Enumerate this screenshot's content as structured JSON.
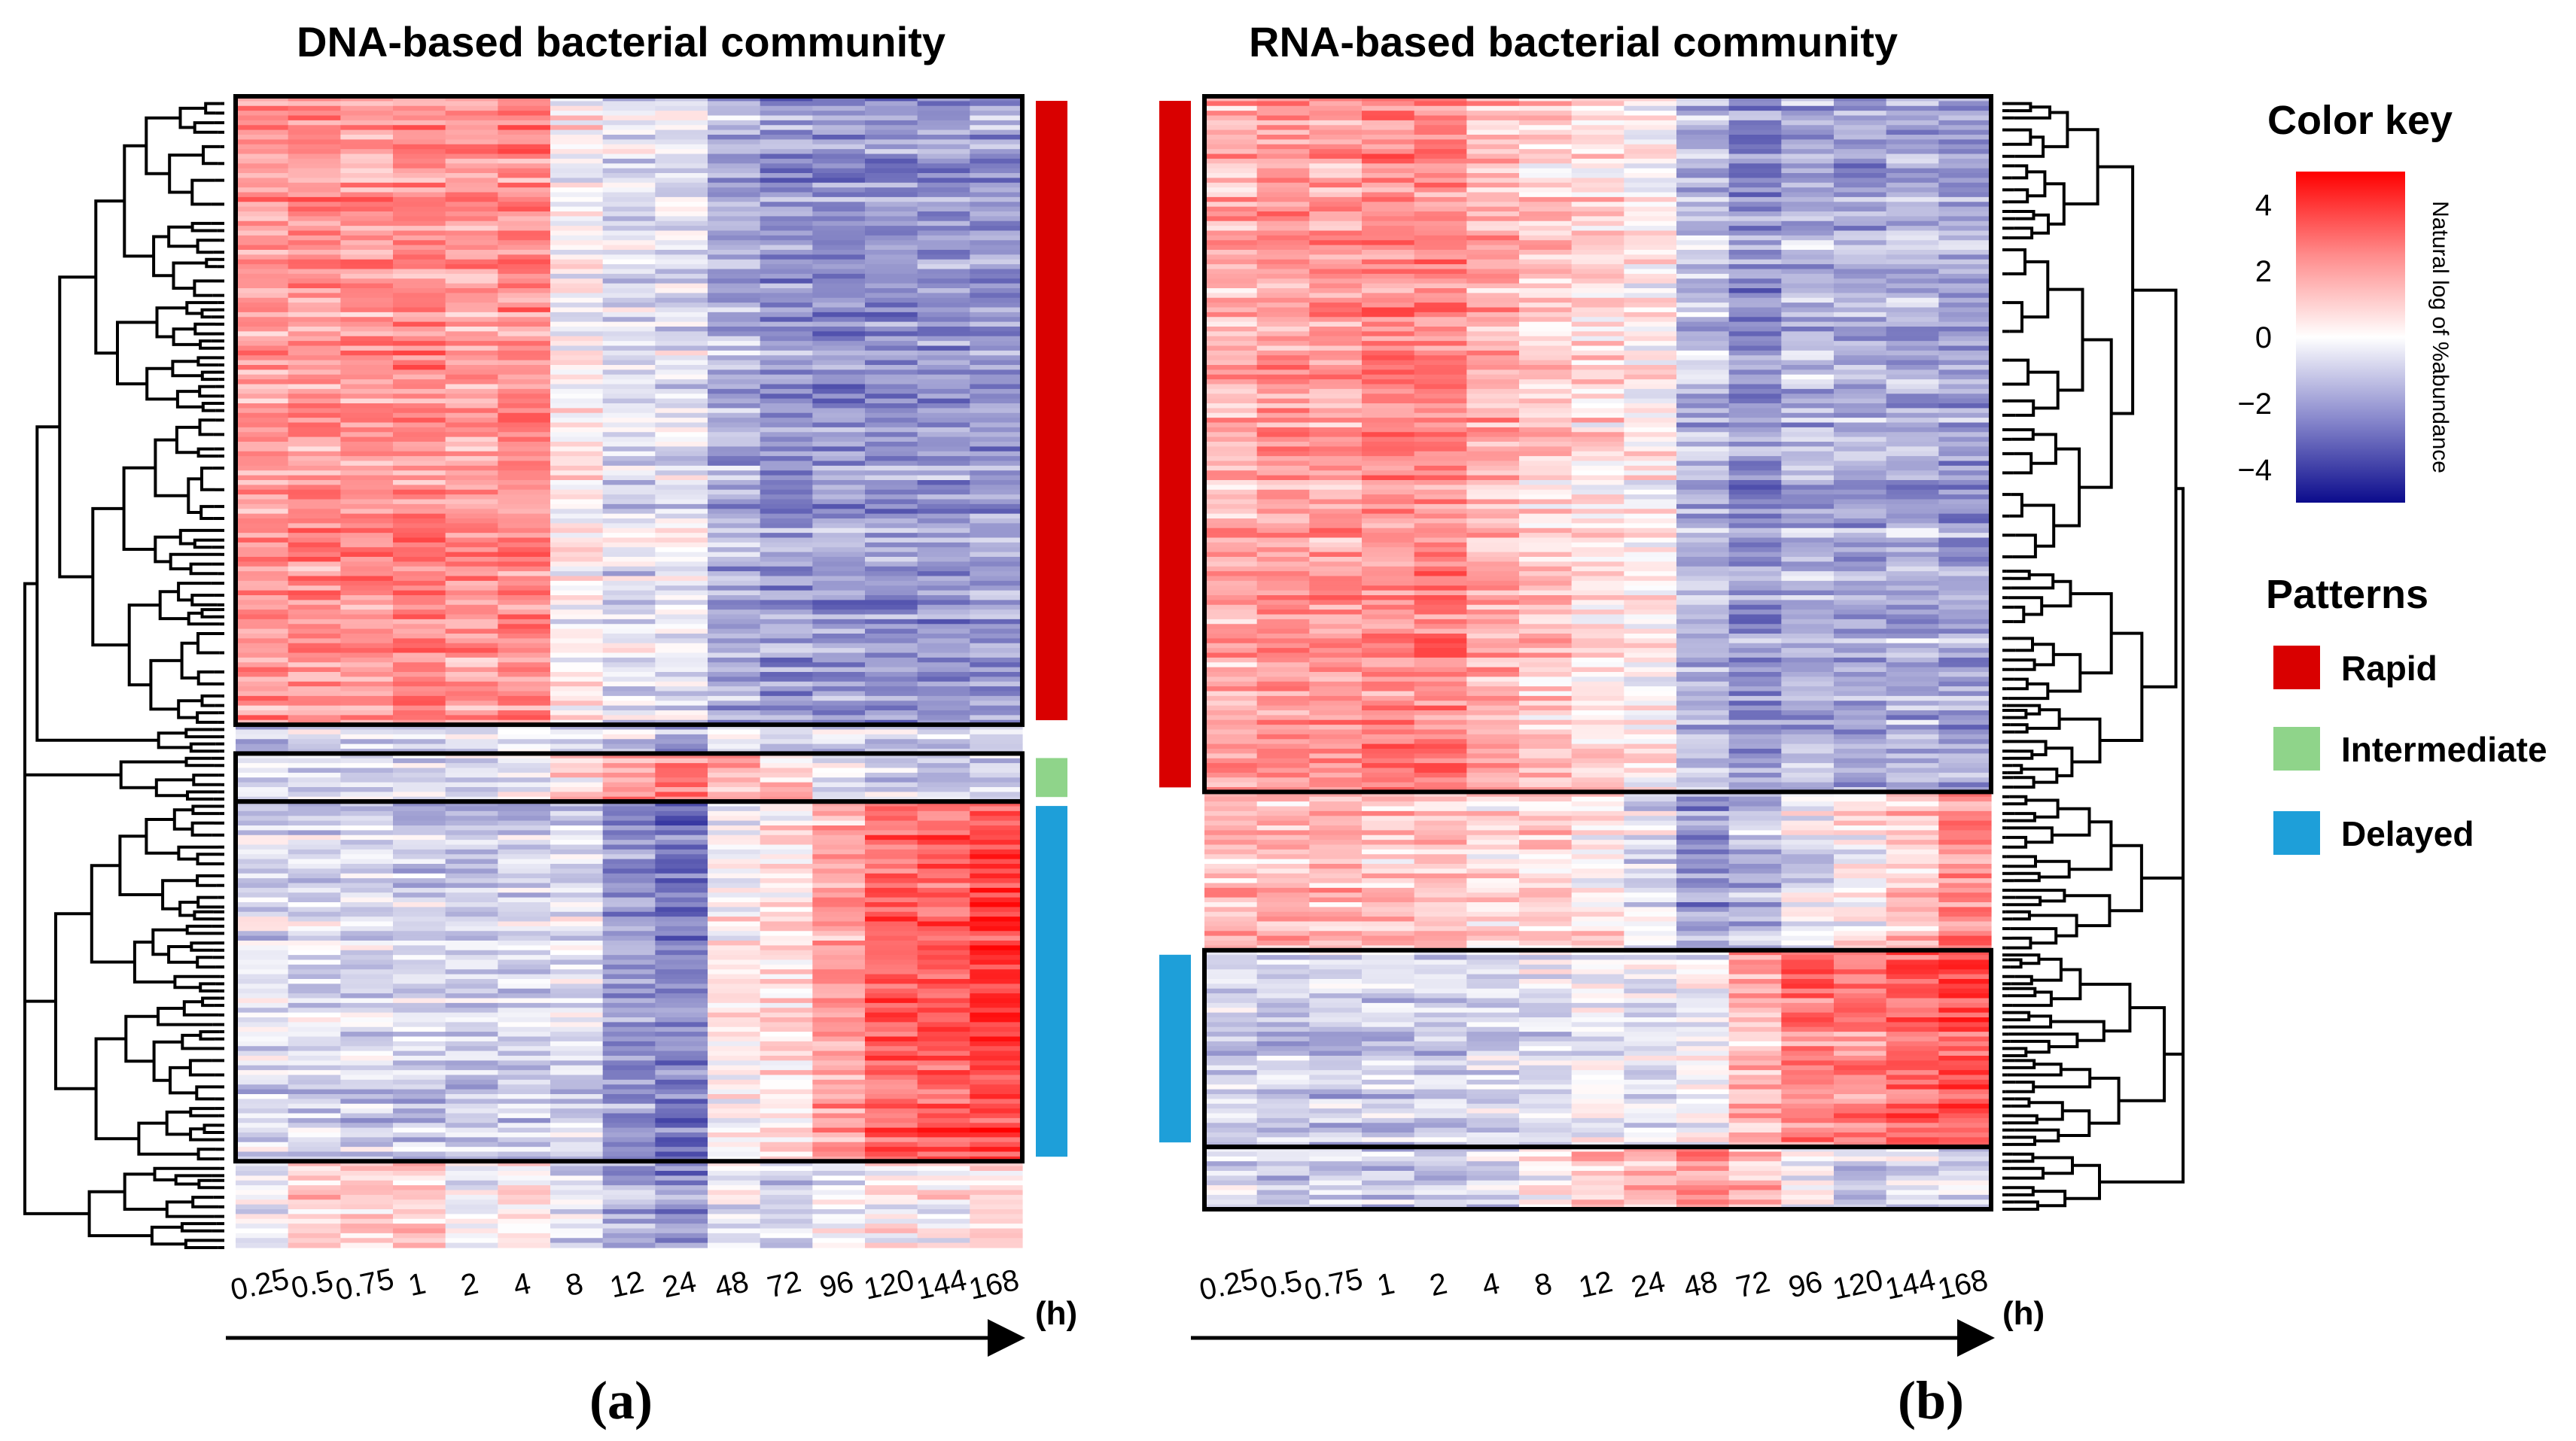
{
  "chart_data": [
    {
      "type": "heatmap",
      "panel_label": "(a)",
      "title": "DNA-based bacterial community",
      "xlabel": "(h)",
      "x_ticks": [
        "0.25",
        "0.5",
        "0.75",
        "1",
        "2",
        "4",
        "8",
        "12",
        "24",
        "48",
        "72",
        "96",
        "120",
        "144",
        "168"
      ],
      "row_count": 240,
      "dendrogram_side": "left",
      "pattern_bar_side": "right",
      "clusters": [
        {
          "pattern": "Rapid",
          "row_start": 0,
          "row_end": 131,
          "profile": [
            2.0,
            2.2,
            2.1,
            2.3,
            2.0,
            2.4,
            0.2,
            -0.6,
            -0.5,
            -1.6,
            -2.2,
            -2.1,
            -2.2,
            -2.1,
            -2.0
          ],
          "boxed": true
        },
        {
          "pattern": "Unassigned",
          "row_start": 131,
          "row_end": 137,
          "profile": [
            -0.9,
            -0.7,
            -0.6,
            -0.5,
            -0.6,
            -0.1,
            -0.6,
            -0.6,
            -1.8,
            -0.4,
            -0.6,
            -0.6,
            -0.5,
            -0.9,
            -0.6
          ],
          "boxed": false
        },
        {
          "pattern": "Intermediate",
          "row_start": 137,
          "row_end": 147,
          "profile": [
            -1.0,
            -0.9,
            -0.9,
            -0.8,
            -0.8,
            -0.6,
            0.6,
            1.8,
            2.2,
            1.4,
            0.8,
            -0.6,
            -0.8,
            -1.3,
            -1.1
          ],
          "boxed": true
        },
        {
          "pattern": "Delayed",
          "row_start": 147,
          "row_end": 222,
          "profile": [
            -0.8,
            -0.8,
            -0.9,
            -1.0,
            -1.0,
            -1.0,
            -0.7,
            -2.2,
            -2.6,
            0.1,
            0.5,
            1.8,
            3.0,
            3.2,
            3.6
          ],
          "boxed": true
        },
        {
          "pattern": "Unassigned",
          "row_start": 222,
          "row_end": 240,
          "profile": [
            -0.4,
            0.6,
            1.0,
            0.8,
            -0.3,
            0.3,
            -0.6,
            -1.6,
            -2.4,
            -0.6,
            -0.8,
            -0.3,
            0.3,
            0.2,
            0.6
          ],
          "boxed": false
        }
      ]
    },
    {
      "type": "heatmap",
      "panel_label": "(b)",
      "title": "RNA-based bacterial community",
      "xlabel": "(h)",
      "x_ticks": [
        "0.25",
        "0.5",
        "0.75",
        "1",
        "2",
        "4",
        "8",
        "12",
        "24",
        "48",
        "72",
        "96",
        "120",
        "144",
        "168"
      ],
      "row_count": 240,
      "dendrogram_side": "right",
      "pattern_bar_side": "left",
      "clusters": [
        {
          "pattern": "Rapid",
          "row_start": 0,
          "row_end": 145,
          "profile": [
            1.6,
            2.1,
            2.0,
            2.3,
            2.4,
            1.6,
            1.0,
            0.7,
            0.3,
            -1.4,
            -2.2,
            -1.6,
            -1.8,
            -1.6,
            -1.9
          ],
          "boxed": true
        },
        {
          "pattern": "Unassigned",
          "row_start": 145,
          "row_end": 178,
          "profile": [
            1.3,
            1.1,
            1.4,
            1.0,
            1.2,
            0.6,
            0.8,
            0.4,
            -0.6,
            -2.2,
            -1.4,
            -0.4,
            0.2,
            0.9,
            2.2
          ],
          "boxed": false
        },
        {
          "pattern": "Delayed",
          "row_start": 178,
          "row_end": 219,
          "profile": [
            -0.9,
            -0.9,
            -1.0,
            -1.0,
            -1.0,
            -0.9,
            -0.7,
            -0.4,
            -0.6,
            -0.2,
            1.4,
            2.6,
            2.4,
            3.0,
            3.4
          ],
          "boxed": true
        },
        {
          "pattern": "Unassigned",
          "row_start": 219,
          "row_end": 232,
          "profile": [
            -0.8,
            -1.0,
            -0.9,
            -1.0,
            -1.0,
            -0.8,
            0.1,
            1.0,
            1.6,
            2.0,
            1.4,
            0.1,
            -0.8,
            -0.6,
            -0.7
          ],
          "boxed": true
        }
      ]
    }
  ],
  "color_key": {
    "title": "Color key",
    "axis_label": "Natural log of %abundance",
    "ticks": [
      "4",
      "2",
      "0",
      "−2",
      "−4"
    ],
    "tick_values": [
      4,
      2,
      0,
      -2,
      -4
    ],
    "range": [
      -5,
      5
    ],
    "low_color": "#0b0b8c",
    "mid_color": "#ffffff",
    "high_color": "#ff0000"
  },
  "patterns_legend": {
    "title": "Patterns",
    "items": [
      {
        "label": "Rapid",
        "color": "#d90000"
      },
      {
        "label": "Intermediate",
        "color": "#8fd48a"
      },
      {
        "label": "Delayed",
        "color": "#1e9fd9"
      }
    ]
  }
}
